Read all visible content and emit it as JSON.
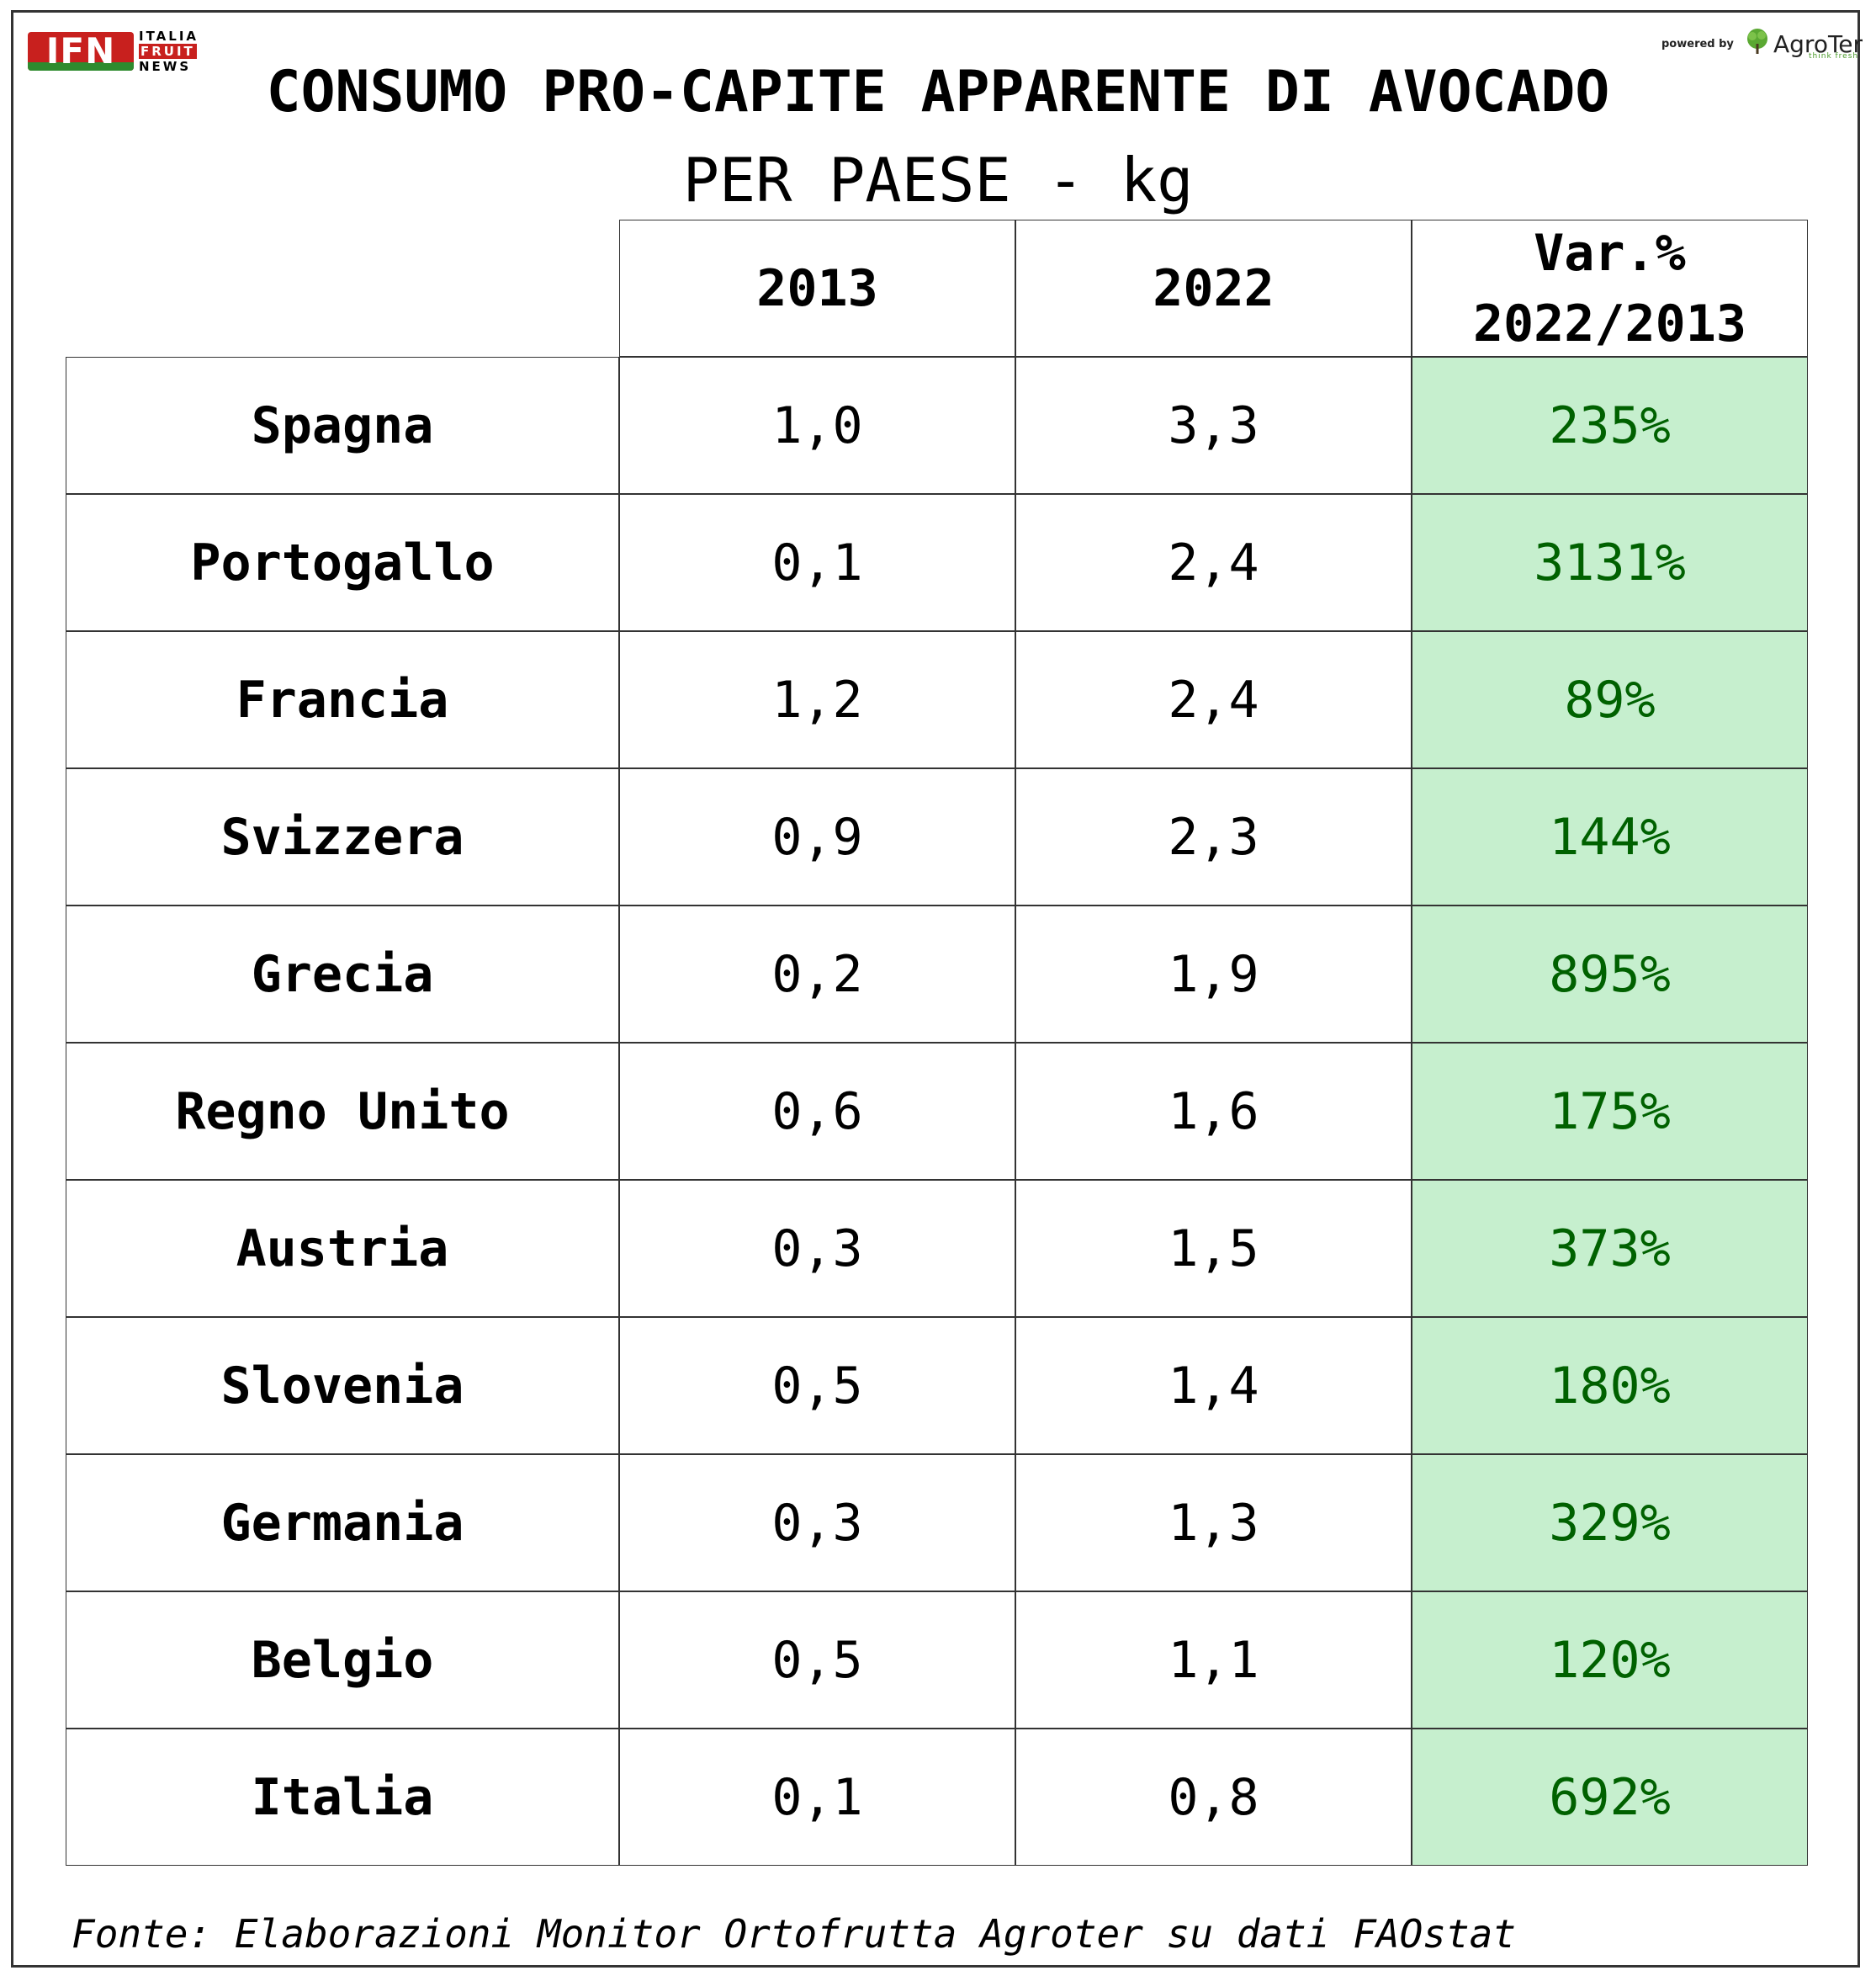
{
  "branding": {
    "ifn_logo_text": "IFN",
    "ifn_side_lines": [
      "ITALIA",
      "FRUIT",
      "NEWS"
    ],
    "powered_by": "powered by",
    "agroter_name": "AgroTer",
    "agroter_tagline": "think fresh"
  },
  "title": "CONSUMO PRO-CAPITE APPARENTE DI AVOCADO",
  "subtitle": "PER PAESE - kg",
  "source": "Fonte: Elaborazioni Monitor Ortofrutta Agroter su dati FAOstat",
  "colors": {
    "positive_fill": "#c6efce",
    "positive_text": "#006100",
    "border": "#333333"
  },
  "chart_data": {
    "type": "table",
    "columns": [
      "",
      "2013",
      "2022",
      "Var.% 2022/2013"
    ],
    "header_var_lines": [
      "Var.%",
      "2022/2013"
    ],
    "rows": [
      {
        "country": "Spagna",
        "v2013": "1,0",
        "v2022": "3,3",
        "var": "235%"
      },
      {
        "country": "Portogallo",
        "v2013": "0,1",
        "v2022": "2,4",
        "var": "3131%"
      },
      {
        "country": "Francia",
        "v2013": "1,2",
        "v2022": "2,4",
        "var": "89%"
      },
      {
        "country": "Svizzera",
        "v2013": "0,9",
        "v2022": "2,3",
        "var": "144%"
      },
      {
        "country": "Grecia",
        "v2013": "0,2",
        "v2022": "1,9",
        "var": "895%"
      },
      {
        "country": "Regno Unito",
        "v2013": "0,6",
        "v2022": "1,6",
        "var": "175%"
      },
      {
        "country": "Austria",
        "v2013": "0,3",
        "v2022": "1,5",
        "var": "373%"
      },
      {
        "country": "Slovenia",
        "v2013": "0,5",
        "v2022": "1,4",
        "var": "180%"
      },
      {
        "country": "Germania",
        "v2013": "0,3",
        "v2022": "1,3",
        "var": "329%"
      },
      {
        "country": "Belgio",
        "v2013": "0,5",
        "v2022": "1,1",
        "var": "120%"
      },
      {
        "country": "Italia",
        "v2013": "0,1",
        "v2022": "0,8",
        "var": "692%"
      }
    ]
  }
}
